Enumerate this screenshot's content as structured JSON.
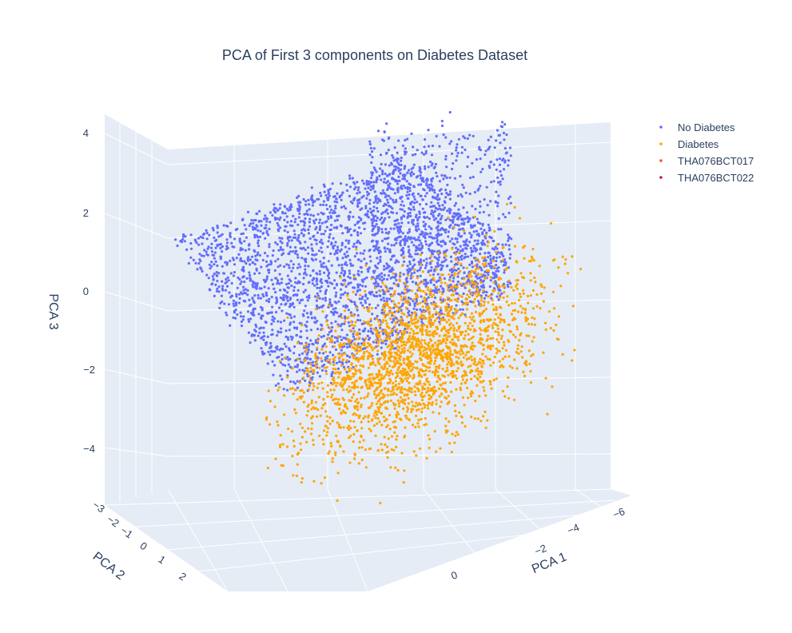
{
  "chart_data": {
    "type": "scatter3d",
    "title": "PCA of First 3 components on Diabetes Dataset",
    "axes": {
      "x": {
        "label": "PCA 1",
        "ticks": [
          "0",
          "−2",
          "−4",
          "−6"
        ]
      },
      "y": {
        "label": "PCA 2",
        "ticks": [
          "−3",
          "−2",
          "−1",
          "0",
          "1",
          "2"
        ]
      },
      "z": {
        "label": "PCA 3",
        "ticks": [
          "4",
          "2",
          "0",
          "−2",
          "−4"
        ]
      }
    },
    "legend_position": "top-right",
    "series": [
      {
        "name": "No Diabetes",
        "color": "#636efa"
      },
      {
        "name": "Diabetes",
        "color": "#ffa500"
      },
      {
        "name": "THA076BCT017",
        "color": "#ef553b"
      },
      {
        "name": "THA076BCT022",
        "color": "#c21f3a"
      }
    ],
    "background_color": "#e5ecf6",
    "grid": true
  }
}
